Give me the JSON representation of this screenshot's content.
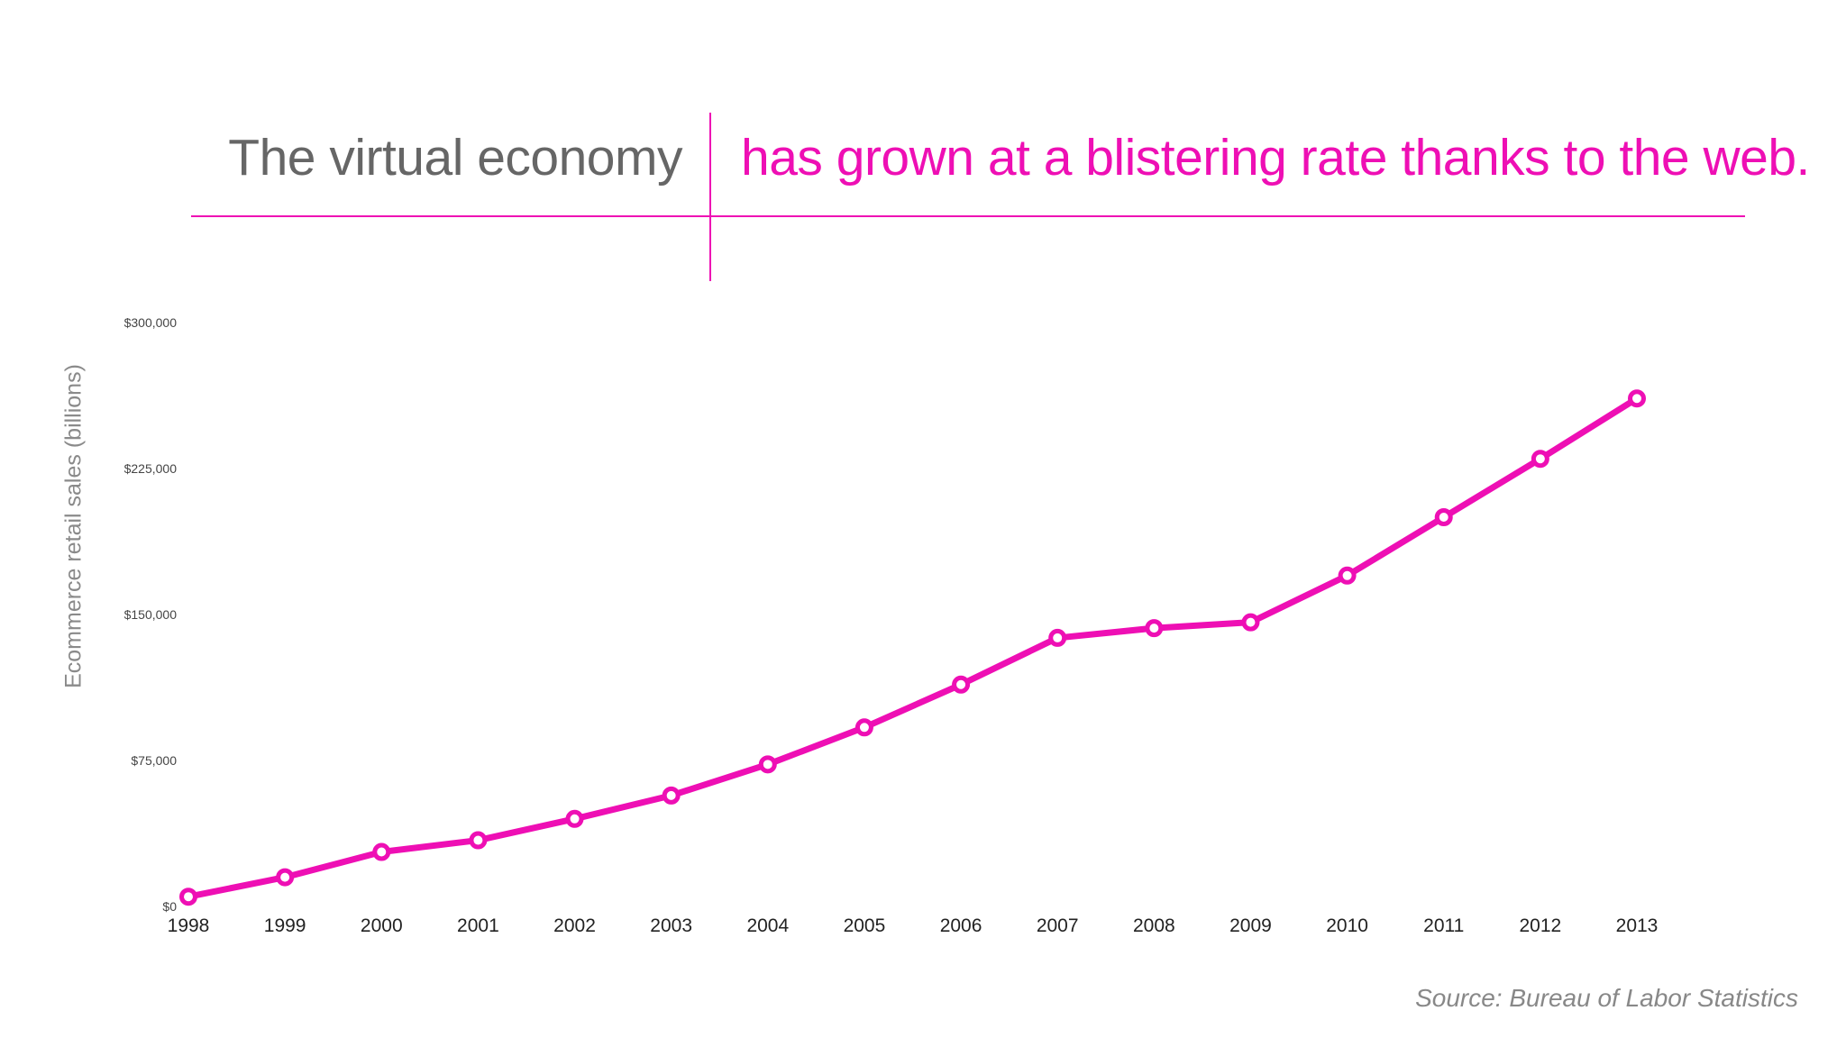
{
  "headline": {
    "left_text": "The virtual economy",
    "right_text": "has grown at a blistering rate thanks to the web."
  },
  "source": "Source: Bureau of Labor Statistics",
  "colors": {
    "accent": "#ee0fb4",
    "headline_gray": "#666666",
    "source_gray": "#888888"
  },
  "chart_data": {
    "type": "line",
    "title": "",
    "xlabel": "",
    "ylabel": "Ecommerce retail sales (billions)",
    "ylim": [
      0,
      300000
    ],
    "yticks": [
      {
        "value": 0,
        "label": "$0"
      },
      {
        "value": 75000,
        "label": "$75,000"
      },
      {
        "value": 150000,
        "label": "$150,000"
      },
      {
        "value": 225000,
        "label": "$225,000"
      },
      {
        "value": 300000,
        "label": "$300,000"
      }
    ],
    "grid": false,
    "legend": "none",
    "x": [
      "1998",
      "1999",
      "2000",
      "2001",
      "2002",
      "2003",
      "2004",
      "2005",
      "2006",
      "2007",
      "2008",
      "2009",
      "2010",
      "2011",
      "2012",
      "2013"
    ],
    "series": [
      {
        "values": [
          5000,
          15000,
          28000,
          34000,
          45000,
          57000,
          73000,
          92000,
          114000,
          138000,
          143000,
          146000,
          170000,
          200000,
          230000,
          261000
        ]
      }
    ]
  }
}
